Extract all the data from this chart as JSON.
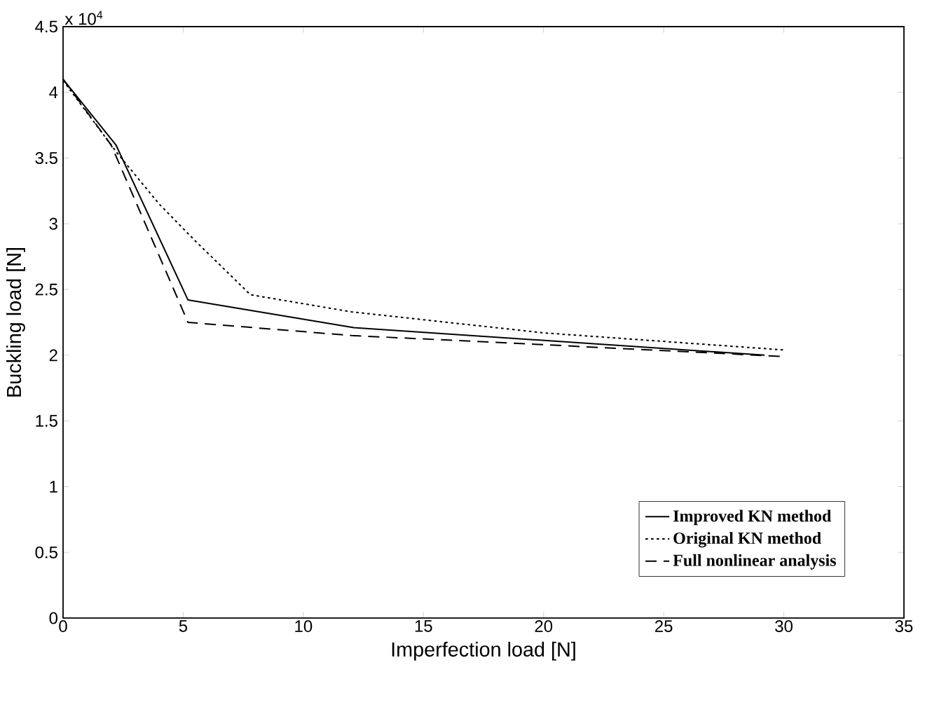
{
  "chart_data": {
    "type": "line",
    "xlabel": "Imperfection load [N]",
    "ylabel": "Buckling load [N]",
    "annotations": [
      "x 10$^{4}$"
    ],
    "xlim": [
      0,
      35
    ],
    "xticks": [
      0,
      5,
      10,
      15,
      20,
      25,
      30,
      35
    ],
    "ylim": [
      0,
      4.5
    ],
    "yticks": [
      0,
      0.5,
      1,
      1.5,
      2,
      2.5,
      3,
      3.5,
      4,
      4.5
    ],
    "legend": "bottom right",
    "series": [
      {
        "name": "Improved KN method",
        "color": "#000000",
        "line_style": "solid",
        "x": [
          0,
          2.2,
          5.2,
          12.1,
          29.2
        ],
        "values": [
          4.1,
          3.6,
          2.42,
          2.21,
          2.0
        ]
      },
      {
        "name": "Original KN method",
        "color": "#000000",
        "line_style": "dotted",
        "x": [
          0,
          2.2,
          4,
          5.5,
          7.8,
          12,
          20,
          30
        ],
        "values": [
          4.09,
          3.55,
          3.15,
          2.87,
          2.46,
          2.33,
          2.17,
          2.04
        ]
      },
      {
        "name": "Full nonlinear analysis",
        "color": "#000000",
        "line_style": "dashed",
        "x": [
          0,
          2,
          5.2,
          12,
          20,
          30
        ],
        "values": [
          4.1,
          3.6,
          2.25,
          2.15,
          2.08,
          1.99
        ]
      }
    ]
  }
}
